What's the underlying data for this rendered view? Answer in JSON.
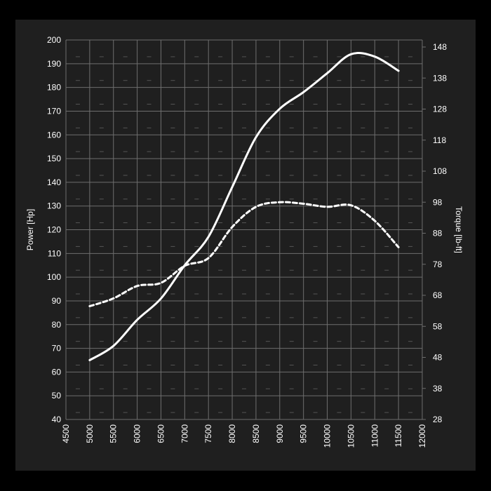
{
  "chart_data": {
    "type": "line",
    "x": [
      5000,
      5500,
      6000,
      6500,
      7000,
      7500,
      8000,
      8500,
      9000,
      9500,
      10000,
      10500,
      11000,
      11500
    ],
    "series": [
      {
        "axis": "left",
        "style": "solid",
        "values": [
          65,
          71,
          82,
          91,
          105,
          117,
          138,
          159,
          171,
          178,
          186,
          194,
          193,
          187
        ]
      },
      {
        "axis": "right",
        "style": "dashed",
        "values": [
          64.5,
          67,
          71,
          72,
          77.5,
          80,
          90,
          96.5,
          98,
          97.5,
          96.5,
          97,
          92,
          83.5
        ]
      }
    ],
    "xlabel": "",
    "ylabel": "Power [Hp]",
    "y2label": "Torque [lb-ft]",
    "xlim": [
      4500,
      12000
    ],
    "ylim": [
      40,
      200
    ],
    "y2lim": [
      28,
      148
    ],
    "xticks": [
      "4500",
      "5000",
      "5500",
      "6000",
      "6500",
      "7000",
      "7500",
      "8000",
      "8500",
      "9000",
      "9500",
      "10000",
      "10500",
      "11000",
      "11500",
      "12000"
    ],
    "yticks": [
      "40",
      "50",
      "60",
      "70",
      "80",
      "90",
      "100",
      "110",
      "120",
      "130",
      "140",
      "150",
      "160",
      "170",
      "180",
      "190",
      "200"
    ],
    "y2ticks": [
      "28",
      "38",
      "48",
      "58",
      "68",
      "78",
      "88",
      "98",
      "108",
      "118",
      "128",
      "138",
      "148"
    ],
    "grid": true,
    "legend": "none",
    "colors": {
      "background": "#000000",
      "panel": "#1f1f1f",
      "grid": "#6e6e6e",
      "line": "#ffffff",
      "text": "#ffffff"
    }
  }
}
